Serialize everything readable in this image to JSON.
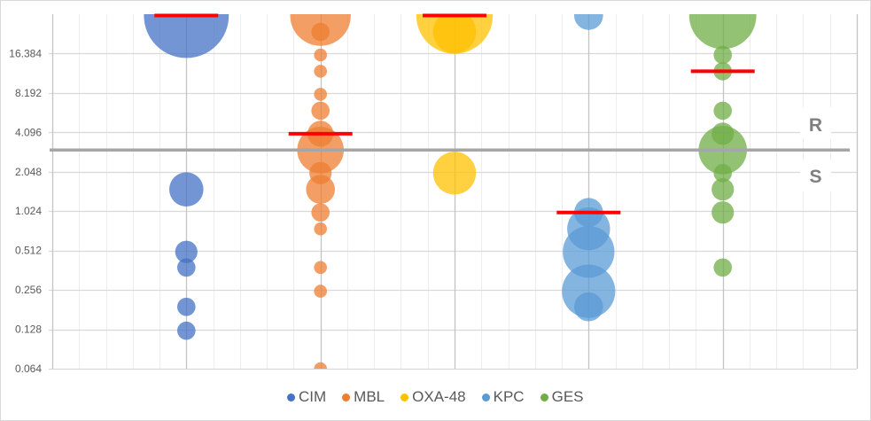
{
  "chart_data": {
    "type": "scatter",
    "subtype": "bubble",
    "title": "",
    "xlabel": "",
    "ylabel": "",
    "grid": true,
    "x_axis": {
      "min": 0,
      "max": 6,
      "major_unit": 1,
      "minor_unit": 0.2,
      "tick_labels_visible": false
    },
    "y_axis": {
      "scale": "log2",
      "min": 0.064,
      "max": 32.768,
      "ticks": [
        0.064,
        0.128,
        0.256,
        0.512,
        1.024,
        2.048,
        4.096,
        8.192,
        16.384
      ],
      "tick_labels": [
        "0.064",
        "0.128",
        "0.256",
        "0.512",
        "1.024",
        "2.048",
        "4.096",
        "8.192",
        "16.384"
      ]
    },
    "threshold": {
      "value": 3,
      "label_above": "R",
      "label_below": "S",
      "color": "#A6A6A6"
    },
    "marker_color": "#FF0000",
    "legend": {
      "position": "bottom",
      "entries": [
        {
          "label": "CIM"
        },
        {
          "label": "MBL"
        },
        {
          "label": "OXA-48"
        },
        {
          "label": "KPC"
        },
        {
          "label": "GES"
        }
      ]
    },
    "series": [
      {
        "name": "CIM",
        "color": "#4472C4",
        "x": 1,
        "marker_value": 32,
        "points": [
          {
            "y": 32,
            "size": 43
          },
          {
            "y": 1.5,
            "size": 7
          },
          {
            "y": 0.5,
            "size": 3
          },
          {
            "y": 0.38,
            "size": 2
          },
          {
            "y": 0.19,
            "size": 2
          },
          {
            "y": 0.125,
            "size": 2
          }
        ]
      },
      {
        "name": "MBL",
        "color": "#ED7D31",
        "x": 2,
        "marker_value": 4,
        "points": [
          {
            "y": 32,
            "size": 22
          },
          {
            "y": 24,
            "size": 2
          },
          {
            "y": 16,
            "size": 1
          },
          {
            "y": 12,
            "size": 1
          },
          {
            "y": 8,
            "size": 1
          },
          {
            "y": 6,
            "size": 2
          },
          {
            "y": 4,
            "size": 4
          },
          {
            "y": 3,
            "size": 13
          },
          {
            "y": 2,
            "size": 3
          },
          {
            "y": 1.5,
            "size": 5
          },
          {
            "y": 1,
            "size": 2
          },
          {
            "y": 0.75,
            "size": 1
          },
          {
            "y": 0.38,
            "size": 1
          },
          {
            "y": 0.25,
            "size": 1
          },
          {
            "y": 0.064,
            "size": 1
          }
        ]
      },
      {
        "name": "OXA-48",
        "color": "#FFC000",
        "x": 3,
        "marker_value": 32,
        "points": [
          {
            "y": 32,
            "size": 35
          },
          {
            "y": 24,
            "size": 11
          },
          {
            "y": 2,
            "size": 11
          }
        ]
      },
      {
        "name": "KPC",
        "color": "#5B9BD5",
        "x": 4,
        "marker_value": 1,
        "points": [
          {
            "y": 32,
            "size": 5
          },
          {
            "y": 1,
            "size": 5
          },
          {
            "y": 0.75,
            "size": 11
          },
          {
            "y": 0.5,
            "size": 16
          },
          {
            "y": 0.25,
            "size": 17
          },
          {
            "y": 0.19,
            "size": 5
          }
        ]
      },
      {
        "name": "GES",
        "color": "#70AD47",
        "x": 5,
        "marker_value": 12,
        "points": [
          {
            "y": 32,
            "size": 27
          },
          {
            "y": 16,
            "size": 2
          },
          {
            "y": 12,
            "size": 2
          },
          {
            "y": 6,
            "size": 2
          },
          {
            "y": 4,
            "size": 3
          },
          {
            "y": 3,
            "size": 14
          },
          {
            "y": 2,
            "size": 2
          },
          {
            "y": 1.5,
            "size": 3
          },
          {
            "y": 1,
            "size": 3
          },
          {
            "y": 0.38,
            "size": 2
          }
        ]
      }
    ]
  }
}
